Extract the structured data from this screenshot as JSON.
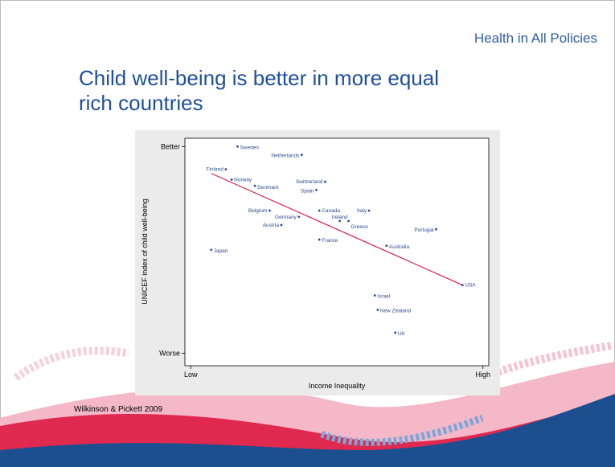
{
  "header": {
    "title": "Health in All Policies"
  },
  "slide_title": "Child well-being is better in more equal rich countries",
  "source": "Wilkinson & Pickett 2009",
  "chart_data": {
    "type": "scatter",
    "x_label": "Income Inequality",
    "y_label": "UNICEF index of child well-being",
    "xlim": [
      -2,
      102
    ],
    "ylim": [
      -6,
      104
    ],
    "xticks": [
      {
        "value": 0,
        "label": "Low"
      },
      {
        "value": 100,
        "label": "High"
      }
    ],
    "yticks": [
      {
        "value": 0,
        "label": "Worse"
      },
      {
        "value": 100,
        "label": "Better"
      }
    ],
    "color": "#2a4d8f",
    "points": [
      {
        "name": "Sweden",
        "x": 16,
        "y": 100
      },
      {
        "name": "Netherlands",
        "x": 38,
        "y": 96
      },
      {
        "name": "Finland",
        "x": 12,
        "y": 89
      },
      {
        "name": "Norway",
        "x": 14,
        "y": 84
      },
      {
        "name": "Denmark",
        "x": 22,
        "y": 81
      },
      {
        "name": "Switzerland",
        "x": 46,
        "y": 83
      },
      {
        "name": "Spain",
        "x": 43,
        "y": 79
      },
      {
        "name": "Belgium",
        "x": 27,
        "y": 69
      },
      {
        "name": "Canada",
        "x": 44,
        "y": 69
      },
      {
        "name": "Italy",
        "x": 61,
        "y": 69
      },
      {
        "name": "Germany",
        "x": 37,
        "y": 66
      },
      {
        "name": "Ireland",
        "x": 51,
        "y": 64
      },
      {
        "name": "Greece",
        "x": 54,
        "y": 64
      },
      {
        "name": "Austria",
        "x": 31,
        "y": 62
      },
      {
        "name": "Portugal",
        "x": 84,
        "y": 60
      },
      {
        "name": "France",
        "x": 44,
        "y": 55
      },
      {
        "name": "Australia",
        "x": 67,
        "y": 52
      },
      {
        "name": "Japan",
        "x": 7,
        "y": 50
      },
      {
        "name": "USA",
        "x": 93,
        "y": 33
      },
      {
        "name": "Israel",
        "x": 63,
        "y": 28
      },
      {
        "name": "New Zealand",
        "x": 64,
        "y": 21
      },
      {
        "name": "UK",
        "x": 70,
        "y": 10
      }
    ],
    "trendline": {
      "color": "#d6204e",
      "x": [
        7,
        93
      ],
      "y": [
        87,
        33
      ]
    }
  }
}
